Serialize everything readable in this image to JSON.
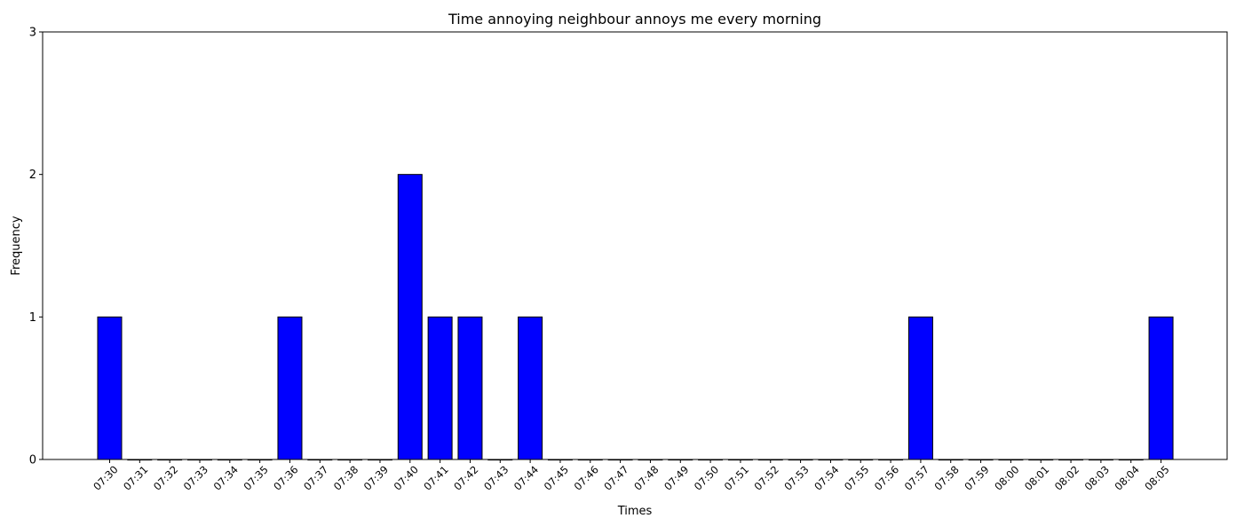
{
  "chart_data": {
    "type": "bar",
    "title": "Time annoying neighbour annoys me every morning",
    "xlabel": "Times",
    "ylabel": "Frequency",
    "ylim": [
      0,
      3
    ],
    "yticks": [
      "0",
      "1",
      "2",
      "3"
    ],
    "categories": [
      "07:30",
      "07:31",
      "07:32",
      "07:33",
      "07:34",
      "07:35",
      "07:36",
      "07:37",
      "07:38",
      "07:39",
      "07:40",
      "07:41",
      "07:42",
      "07:43",
      "07:44",
      "07:45",
      "07:46",
      "07:47",
      "07:48",
      "07:49",
      "07:50",
      "07:51",
      "07:52",
      "07:53",
      "07:54",
      "07:55",
      "07:56",
      "07:57",
      "07:58",
      "07:59",
      "08:00",
      "08:01",
      "08:02",
      "08:03",
      "08:04",
      "08:05"
    ],
    "values": [
      1,
      0,
      0,
      0,
      0,
      0,
      1,
      0,
      0,
      0,
      2,
      1,
      1,
      0,
      1,
      0,
      0,
      0,
      0,
      0,
      0,
      0,
      0,
      0,
      0,
      0,
      0,
      1,
      0,
      0,
      0,
      0,
      0,
      0,
      0,
      1
    ],
    "bar_color": "#0000ff",
    "edge_color": "#000000",
    "grid": false,
    "legend": "none"
  }
}
